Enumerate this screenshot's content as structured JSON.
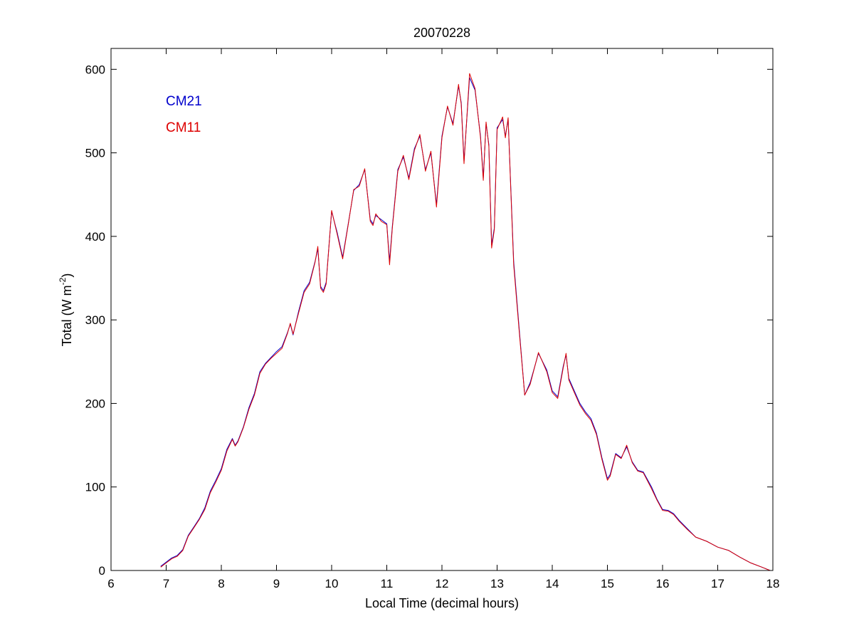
{
  "chart_data": {
    "type": "line",
    "title": "20070228",
    "xlabel": "Local Time (decimal hours)",
    "ylabel_main": "Total (W m",
    "ylabel_sup": "-2",
    "ylabel_close": ")",
    "xlim": [
      6,
      18
    ],
    "ylim": [
      0,
      625
    ],
    "xticks": [
      6,
      7,
      8,
      9,
      10,
      11,
      12,
      13,
      14,
      15,
      16,
      17,
      18
    ],
    "yticks": [
      0,
      100,
      200,
      300,
      400,
      500,
      600
    ],
    "grid": false,
    "legend_position": "top-left",
    "series": [
      {
        "name": "CM21",
        "color": "#0000cc",
        "x": [
          6.9,
          7.0,
          7.1,
          7.2,
          7.3,
          7.4,
          7.5,
          7.6,
          7.7,
          7.8,
          7.9,
          8.0,
          8.1,
          8.2,
          8.25,
          8.3,
          8.4,
          8.5,
          8.6,
          8.7,
          8.8,
          8.9,
          9.0,
          9.1,
          9.2,
          9.25,
          9.3,
          9.4,
          9.5,
          9.6,
          9.7,
          9.75,
          9.8,
          9.85,
          9.9,
          10.0,
          10.1,
          10.2,
          10.3,
          10.4,
          10.5,
          10.6,
          10.7,
          10.75,
          10.8,
          10.9,
          11.0,
          11.05,
          11.1,
          11.2,
          11.3,
          11.4,
          11.5,
          11.6,
          11.7,
          11.8,
          11.9,
          12.0,
          12.1,
          12.2,
          12.3,
          12.35,
          12.4,
          12.5,
          12.6,
          12.7,
          12.75,
          12.8,
          12.85,
          12.9,
          12.95,
          13.0,
          13.1,
          13.15,
          13.2,
          13.25,
          13.3,
          13.4,
          13.5,
          13.6,
          13.75,
          13.9,
          14.0,
          14.1,
          14.2,
          14.25,
          14.3,
          14.4,
          14.5,
          14.6,
          14.7,
          14.8,
          14.9,
          15.0,
          15.05,
          15.15,
          15.25,
          15.35,
          15.45,
          15.55,
          15.65,
          15.8,
          15.9,
          16.0,
          16.1,
          16.2,
          16.3,
          16.45,
          16.6,
          16.8,
          17.0,
          17.2,
          17.4,
          17.6,
          17.8,
          17.95
        ],
        "y": [
          5,
          10,
          15,
          18,
          25,
          42,
          52,
          62,
          75,
          95,
          108,
          122,
          145,
          158,
          150,
          155,
          172,
          195,
          212,
          238,
          248,
          255,
          262,
          268,
          285,
          295,
          282,
          310,
          335,
          345,
          370,
          385,
          340,
          335,
          345,
          430,
          405,
          375,
          415,
          455,
          462,
          480,
          420,
          415,
          425,
          420,
          415,
          370,
          412,
          480,
          495,
          470,
          505,
          520,
          480,
          500,
          438,
          520,
          555,
          535,
          580,
          560,
          490,
          590,
          575,
          520,
          470,
          535,
          510,
          390,
          410,
          530,
          540,
          520,
          540,
          455,
          370,
          290,
          210,
          225,
          260,
          240,
          215,
          208,
          245,
          258,
          230,
          215,
          200,
          190,
          182,
          165,
          135,
          110,
          115,
          140,
          135,
          148,
          130,
          120,
          118,
          100,
          85,
          73,
          72,
          68,
          60,
          50,
          40,
          35,
          28,
          24,
          16,
          9,
          4,
          0
        ]
      },
      {
        "name": "CM11",
        "color": "#dd0000",
        "x": [
          6.9,
          7.0,
          7.1,
          7.2,
          7.3,
          7.4,
          7.5,
          7.6,
          7.7,
          7.8,
          7.9,
          8.0,
          8.1,
          8.2,
          8.25,
          8.3,
          8.4,
          8.5,
          8.6,
          8.7,
          8.8,
          8.9,
          9.0,
          9.1,
          9.2,
          9.25,
          9.3,
          9.4,
          9.5,
          9.6,
          9.7,
          9.75,
          9.8,
          9.85,
          9.9,
          10.0,
          10.1,
          10.2,
          10.3,
          10.4,
          10.5,
          10.6,
          10.7,
          10.75,
          10.8,
          10.9,
          11.0,
          11.05,
          11.1,
          11.2,
          11.3,
          11.4,
          11.5,
          11.6,
          11.7,
          11.8,
          11.9,
          12.0,
          12.1,
          12.2,
          12.3,
          12.35,
          12.4,
          12.5,
          12.6,
          12.7,
          12.75,
          12.8,
          12.85,
          12.9,
          12.95,
          13.0,
          13.1,
          13.15,
          13.2,
          13.25,
          13.3,
          13.4,
          13.5,
          13.6,
          13.75,
          13.9,
          14.0,
          14.1,
          14.2,
          14.25,
          14.3,
          14.4,
          14.5,
          14.6,
          14.7,
          14.8,
          14.9,
          15.0,
          15.05,
          15.15,
          15.25,
          15.35,
          15.45,
          15.55,
          15.65,
          15.8,
          15.9,
          16.0,
          16.1,
          16.2,
          16.3,
          16.45,
          16.6,
          16.8,
          17.0,
          17.2,
          17.4,
          17.6,
          17.8,
          17.95
        ],
        "y": [
          4,
          9,
          14,
          17,
          24,
          41,
          51,
          61,
          73,
          93,
          106,
          120,
          143,
          157,
          149,
          154,
          171,
          193,
          210,
          236,
          247,
          254,
          260,
          266,
          284,
          296,
          283,
          308,
          333,
          343,
          369,
          388,
          338,
          333,
          343,
          431,
          403,
          373,
          414,
          456,
          460,
          481,
          418,
          413,
          427,
          418,
          414,
          366,
          410,
          478,
          497,
          468,
          503,
          522,
          478,
          502,
          435,
          518,
          556,
          533,
          582,
          558,
          487,
          595,
          577,
          518,
          467,
          537,
          508,
          386,
          408,
          528,
          543,
          518,
          542,
          452,
          366,
          287,
          210,
          223,
          261,
          238,
          213,
          206,
          243,
          260,
          228,
          213,
          198,
          188,
          180,
          163,
          133,
          108,
          113,
          139,
          134,
          150,
          129,
          119,
          117,
          98,
          84,
          72,
          71,
          67,
          59,
          49,
          40,
          35,
          28,
          24,
          16,
          9,
          4,
          0
        ]
      }
    ]
  }
}
